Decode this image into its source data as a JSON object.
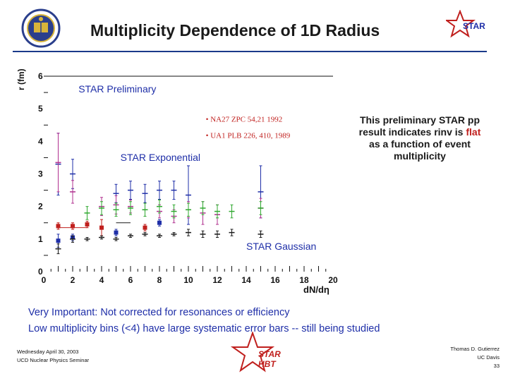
{
  "slide": {
    "title": "Multiplicity Dependence of 1D Radius",
    "note_before": "This preliminary STAR pp result indicates rinv is ",
    "note_highlight": "flat",
    "note_after": " as a function of event multiplicity",
    "warning_1": "Very Important: Not corrected for resonances or efficiency",
    "warning_2": "Low multiplicity bins (<4) have large systematic error bars -- still being studied",
    "footer_left": [
      "Wednesday April 30, 2003",
      "UCD Nuclear Physics Seminar"
    ],
    "footer_right": [
      "Thomas D. Gutierrez",
      "UC Davis",
      "33"
    ],
    "star_logo_text": "STAR",
    "star_hbt_text": [
      "STAR",
      "HBT"
    ]
  },
  "colors": {
    "title_rule": "#1a3a8a",
    "warning_text": "#1f2fa8",
    "highlight": "#c0201e",
    "ucd_seal": "#2b3f8c",
    "star_logo": "#c0201e"
  },
  "icons": [
    "ucd-seal-icon",
    "star-logo-icon",
    "star-hbt-logo-icon"
  ],
  "chart_data": {
    "type": "scatter",
    "title": "",
    "xlabel": "dN/dη",
    "ylabel": "r (fm)",
    "xlim": [
      0,
      20
    ],
    "ylim": [
      0,
      6
    ],
    "x_ticks": [
      0,
      2,
      4,
      6,
      8,
      10,
      12,
      14,
      16,
      18,
      20
    ],
    "y_ticks": [
      0,
      1,
      2,
      3,
      4,
      5,
      6
    ],
    "grid": false,
    "annotations": [
      {
        "text": "STAR Preliminary",
        "x": 2.4,
        "y": 5.5,
        "color": "#1f2fa8",
        "size": 14
      },
      {
        "text": "STAR Exponential",
        "x": 5.3,
        "y": 3.4,
        "color": "#1f2fa8",
        "size": 14
      },
      {
        "text": "STAR Gaussian",
        "x": 14.0,
        "y": 0.67,
        "color": "#1f2fa8",
        "size": 14
      },
      {
        "text": "• NA27 ZPC 54,21 1992",
        "x": 11.2,
        "y": 4.6,
        "color": "#c0201e",
        "size": 11
      },
      {
        "text": "• UA1 PLB 226, 410, 1989",
        "x": 11.2,
        "y": 4.1,
        "color": "#c0201e",
        "size": 11
      }
    ],
    "series": [
      {
        "color": "#1f2fa8",
        "marker": "cross",
        "points": [
          [
            1.0,
            3.3,
            0.95
          ],
          [
            2.0,
            3.0,
            0.45
          ],
          [
            5.0,
            2.4,
            0.28
          ],
          [
            6.0,
            2.5,
            0.28
          ],
          [
            7.0,
            2.4,
            0.28
          ],
          [
            8.0,
            2.5,
            0.28
          ],
          [
            9.0,
            2.5,
            0.28
          ],
          [
            10.0,
            2.35,
            0.9
          ],
          [
            15.0,
            2.45,
            0.8
          ]
        ]
      },
      {
        "color": "#b0308f",
        "marker": "cross",
        "points": [
          [
            1.0,
            3.35,
            0.9
          ],
          [
            2.0,
            2.45,
            0.35
          ],
          [
            4.0,
            2.0,
            0.28
          ],
          [
            5.0,
            2.05,
            0.28
          ],
          [
            6.0,
            2.0,
            0.2
          ],
          [
            7.0,
            1.9,
            0.2
          ],
          [
            8.0,
            1.85,
            0.2
          ],
          [
            9.0,
            1.7,
            0.2
          ],
          [
            10.0,
            1.9,
            0.25
          ],
          [
            11.0,
            1.8,
            0.35
          ],
          [
            12.0,
            1.75,
            0.3
          ],
          [
            15.0,
            1.95,
            0.3
          ]
        ]
      },
      {
        "color": "#2fa82f",
        "marker": "cross",
        "points": [
          [
            3.0,
            1.8,
            0.2
          ],
          [
            4.0,
            1.95,
            0.2
          ],
          [
            5.0,
            1.9,
            0.2
          ],
          [
            6.0,
            1.95,
            0.2
          ],
          [
            7.0,
            1.9,
            0.2
          ],
          [
            8.0,
            2.0,
            0.2
          ],
          [
            9.0,
            1.85,
            0.2
          ],
          [
            10.0,
            1.9,
            0.2
          ],
          [
            11.0,
            1.95,
            0.2
          ],
          [
            12.0,
            1.85,
            0.2
          ],
          [
            13.0,
            1.85,
            0.2
          ],
          [
            15.0,
            1.95,
            0.2
          ]
        ]
      },
      {
        "color": "#c0201e",
        "marker": "square",
        "points": [
          [
            1.0,
            1.4,
            0.1
          ],
          [
            2.0,
            1.4,
            0.1
          ],
          [
            3.0,
            1.45,
            0.1
          ],
          [
            4.0,
            1.35,
            0.25
          ],
          [
            7.0,
            1.35,
            0.1
          ]
        ]
      },
      {
        "color": "#1f2fa8",
        "marker": "square",
        "points": [
          [
            1.0,
            0.95,
            0.2
          ],
          [
            2.0,
            1.05,
            0.1
          ],
          [
            5.0,
            1.2,
            0.1
          ],
          [
            8.0,
            1.5,
            0.1
          ]
        ]
      },
      {
        "color": "#1a1a1a",
        "marker": "cross",
        "points": [
          [
            1.0,
            0.7,
            0.15
          ],
          [
            2.0,
            1.0,
            0.1
          ],
          [
            3.0,
            1.0,
            0.05
          ],
          [
            4.0,
            1.05,
            0.05
          ],
          [
            5.0,
            1.0,
            0.05
          ],
          [
            6.0,
            1.1,
            0.05
          ],
          [
            7.0,
            1.15,
            0.05
          ],
          [
            8.0,
            1.1,
            0.05
          ],
          [
            9.0,
            1.15,
            0.05
          ],
          [
            10.0,
            1.2,
            0.1
          ],
          [
            11.0,
            1.15,
            0.1
          ],
          [
            12.0,
            1.15,
            0.1
          ],
          [
            13.0,
            1.2,
            0.1
          ],
          [
            15.0,
            1.15,
            0.1
          ]
        ]
      }
    ],
    "reference_lines": [
      {
        "from": [
          1.0,
          1.35
        ],
        "to": [
          3.0,
          1.35
        ],
        "color": "#c0201e"
      },
      {
        "from": [
          5.0,
          1.5
        ],
        "to": [
          6.0,
          1.5
        ],
        "color": "#1a1a1a"
      }
    ]
  }
}
